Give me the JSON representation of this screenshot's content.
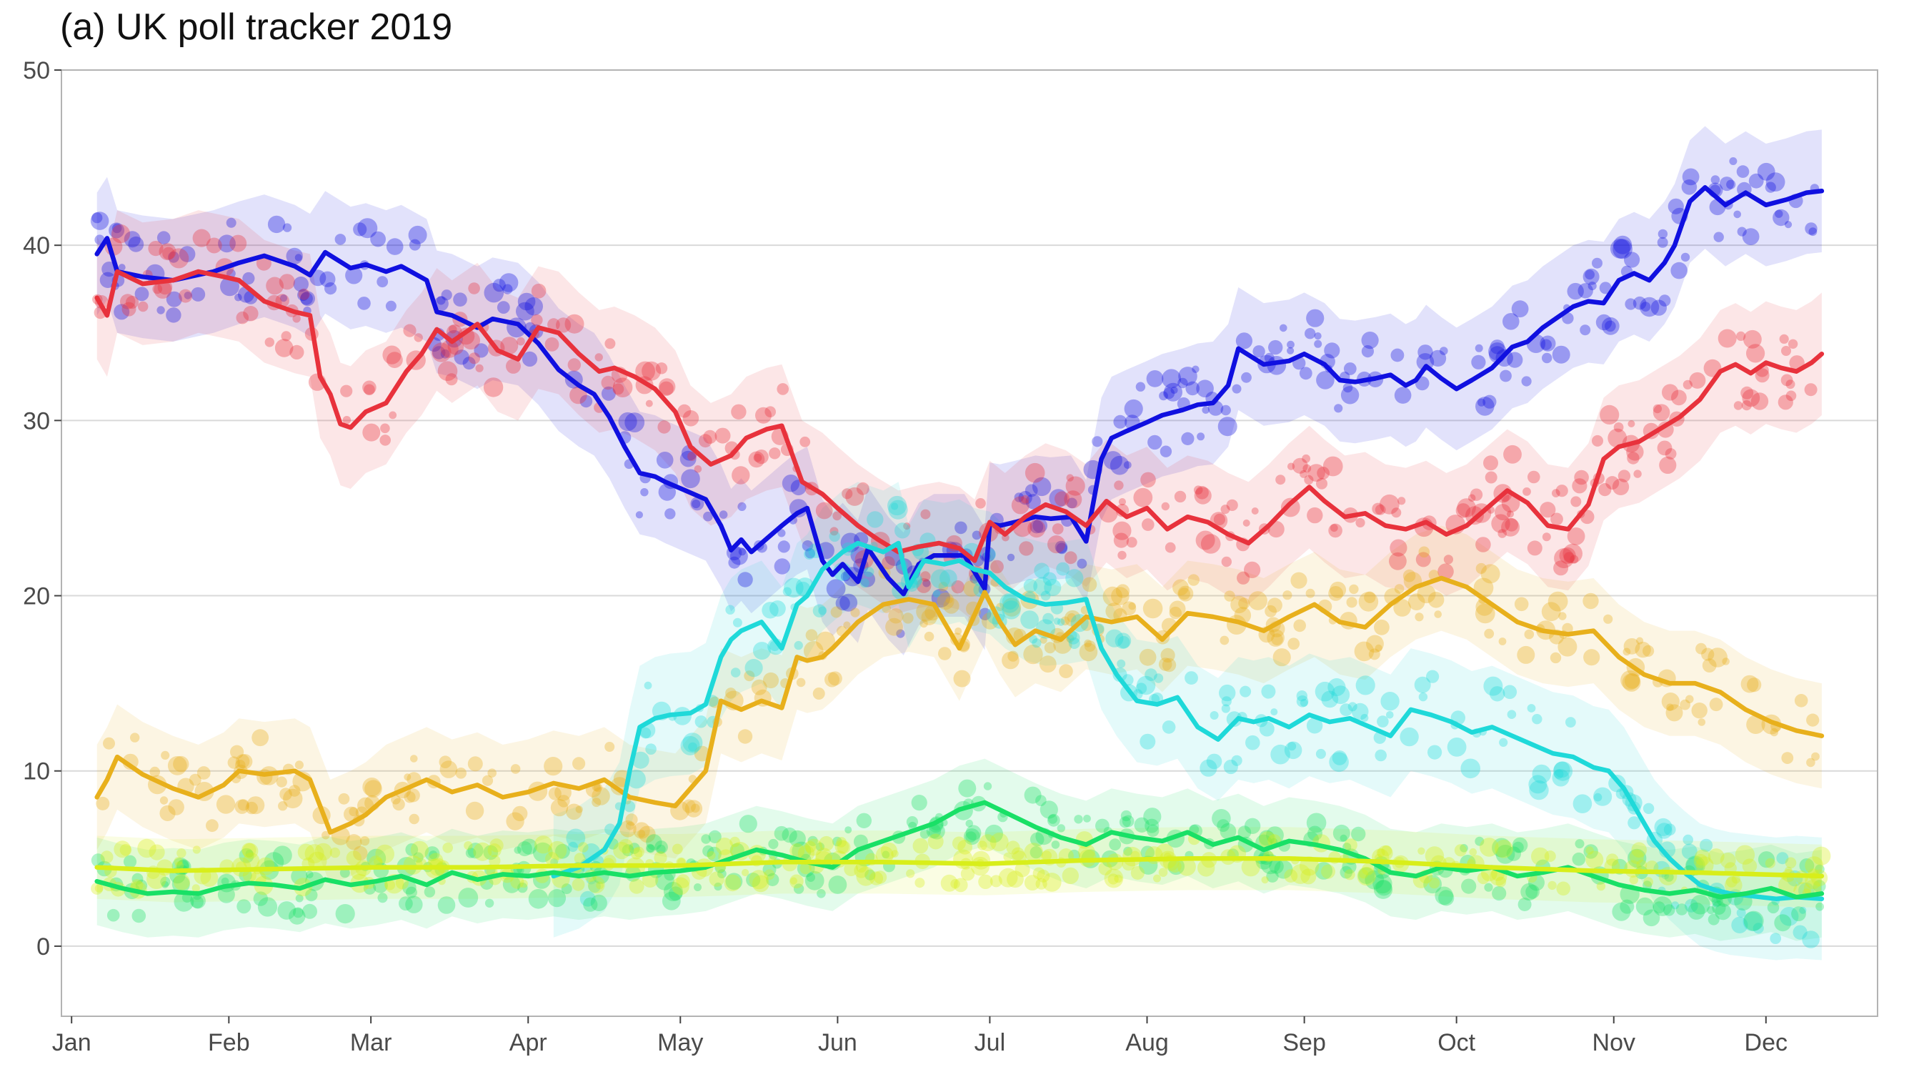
{
  "chart_data": {
    "type": "line",
    "title": "(a) UK poll tracker 2019",
    "xlabel": "",
    "ylabel": "",
    "ylim": [
      -4,
      50
    ],
    "xlim": [
      -2,
      356
    ],
    "grid": "horizontal",
    "legend": "none",
    "x_tick_labels": [
      "Jan",
      "Feb",
      "Mar",
      "Apr",
      "May",
      "Jun",
      "Jul",
      "Aug",
      "Sep",
      "Oct",
      "Nov",
      "Dec"
    ],
    "x_tick_days": [
      0,
      31,
      59,
      90,
      120,
      151,
      181,
      212,
      243,
      273,
      304,
      334
    ],
    "y_ticks": [
      0,
      10,
      20,
      30,
      40,
      50
    ],
    "series": [
      {
        "color": "#1010e0",
        "band": 3.5,
        "x": [
          5,
          7,
          9,
          14,
          20,
          28,
          33,
          38,
          44,
          47,
          50,
          55,
          58,
          62,
          65,
          70,
          72,
          75,
          80,
          83,
          88,
          92,
          96,
          100,
          103,
          106,
          109,
          112,
          115,
          117,
          121,
          125,
          128,
          130,
          132,
          134,
          136,
          140,
          143,
          145,
          148,
          150,
          152,
          155,
          157,
          161,
          164,
          167,
          170,
          173,
          176,
          180,
          181,
          183,
          186,
          190,
          193,
          197,
          200,
          203,
          205,
          208,
          212,
          215,
          219,
          222,
          225,
          228,
          230,
          235,
          240,
          243,
          247,
          250,
          253,
          257,
          260,
          263,
          265,
          267,
          270,
          273,
          276,
          280,
          284,
          287,
          290,
          293,
          296,
          299,
          302,
          305,
          308,
          311,
          314,
          316,
          319,
          322,
          326,
          330,
          334,
          338,
          342,
          345
        ],
        "y": [
          39.5,
          40.4,
          38.5,
          38.2,
          38.0,
          38.5,
          39.0,
          39.4,
          38.8,
          38.3,
          39.6,
          38.7,
          38.9,
          38.5,
          38.8,
          38.0,
          36.2,
          36.0,
          35.3,
          35.8,
          35.5,
          34.4,
          32.9,
          32.0,
          31.5,
          30.2,
          28.5,
          27.0,
          26.8,
          26.5,
          26.0,
          25.5,
          24.0,
          22.6,
          23.2,
          22.5,
          23.0,
          24.0,
          24.7,
          25.0,
          22.0,
          21.2,
          21.8,
          20.8,
          22.7,
          21.0,
          20.1,
          21.8,
          22.3,
          22.3,
          22.3,
          20.4,
          24.1,
          24.0,
          24.2,
          24.5,
          24.4,
          24.5,
          23.1,
          27.8,
          29.0,
          29.4,
          29.9,
          30.3,
          30.6,
          30.9,
          31.0,
          32.0,
          34.1,
          33.2,
          33.4,
          33.8,
          33.2,
          32.3,
          32.2,
          32.4,
          32.6,
          32.0,
          32.3,
          33.1,
          32.4,
          31.8,
          32.3,
          33.0,
          34.2,
          34.5,
          35.3,
          35.9,
          36.5,
          36.8,
          36.7,
          38.0,
          38.4,
          38.0,
          39.0,
          40.0,
          42.5,
          43.3,
          42.3,
          43.0,
          42.3,
          42.6,
          43.0,
          43.1
        ]
      },
      {
        "color": "#e8323c",
        "band": 3.5,
        "x": [
          5,
          7,
          9,
          14,
          20,
          25,
          30,
          33,
          38,
          44,
          47,
          49,
          51,
          53,
          55,
          58,
          62,
          66,
          69,
          72,
          75,
          80,
          84,
          88,
          92,
          96,
          100,
          104,
          107,
          111,
          115,
          119,
          122,
          126,
          130,
          133,
          137,
          140,
          144,
          148,
          151,
          155,
          159,
          163,
          167,
          171,
          175,
          178,
          181,
          184,
          188,
          192,
          196,
          200,
          204,
          208,
          212,
          216,
          220,
          224,
          228,
          232,
          236,
          240,
          244,
          247,
          251,
          255,
          259,
          263,
          267,
          271,
          275,
          279,
          283,
          287,
          291,
          295,
          299,
          302,
          305,
          309,
          313,
          317,
          321,
          325,
          328,
          331,
          334,
          337,
          340,
          343,
          345
        ],
        "y": [
          37.0,
          36.0,
          38.5,
          37.8,
          38.0,
          38.5,
          38.2,
          38.0,
          36.8,
          36.2,
          36.0,
          32.5,
          31.5,
          29.8,
          29.6,
          30.5,
          31.0,
          32.8,
          33.8,
          35.2,
          34.5,
          35.5,
          34.0,
          33.5,
          35.3,
          35.0,
          33.8,
          32.8,
          33.0,
          32.5,
          31.8,
          30.5,
          28.5,
          27.5,
          28.0,
          29.0,
          29.5,
          29.7,
          26.5,
          25.8,
          25.0,
          24.0,
          23.2,
          22.5,
          22.8,
          23.0,
          22.7,
          22.0,
          24.2,
          23.5,
          24.5,
          25.2,
          24.8,
          24.0,
          25.4,
          24.5,
          25.0,
          23.8,
          24.5,
          24.2,
          23.5,
          23.0,
          24.0,
          25.2,
          26.2,
          25.4,
          24.5,
          24.7,
          24.0,
          23.8,
          24.2,
          23.5,
          24.0,
          25.0,
          26.0,
          25.3,
          24.0,
          23.8,
          25.2,
          27.8,
          28.5,
          28.8,
          29.5,
          30.2,
          31.2,
          32.8,
          33.2,
          32.7,
          33.3,
          33.0,
          32.8,
          33.3,
          33.8
        ]
      },
      {
        "color": "#e8b01c",
        "band": 3.0,
        "x": [
          5,
          7,
          9,
          14,
          20,
          25,
          30,
          33,
          38,
          44,
          47,
          49,
          51,
          55,
          58,
          62,
          66,
          70,
          75,
          80,
          85,
          90,
          95,
          100,
          105,
          110,
          115,
          119,
          122,
          125,
          128,
          132,
          136,
          140,
          143,
          145,
          148,
          150,
          155,
          160,
          165,
          170,
          175,
          180,
          183,
          186,
          190,
          195,
          200,
          205,
          210,
          215,
          220,
          225,
          230,
          235,
          240,
          245,
          250,
          255,
          260,
          265,
          270,
          275,
          280,
          285,
          290,
          295,
          300,
          305,
          310,
          315,
          320,
          325,
          330,
          335,
          340,
          345
        ],
        "y": [
          8.5,
          9.5,
          10.8,
          9.8,
          9.0,
          8.5,
          9.2,
          10.0,
          9.8,
          10.0,
          9.5,
          8.0,
          6.5,
          7.0,
          7.5,
          8.5,
          9.0,
          9.5,
          8.8,
          9.2,
          8.5,
          8.8,
          9.3,
          9.0,
          9.5,
          8.5,
          8.2,
          8.0,
          9.0,
          10.0,
          14.0,
          13.5,
          14.0,
          13.6,
          16.5,
          16.3,
          16.5,
          17.0,
          18.5,
          19.5,
          19.8,
          19.5,
          17.0,
          20.2,
          18.5,
          17.2,
          18.0,
          17.5,
          18.8,
          18.5,
          18.8,
          17.5,
          19.0,
          18.8,
          18.5,
          18.0,
          18.8,
          19.5,
          18.5,
          18.2,
          19.5,
          20.5,
          21.0,
          20.5,
          19.5,
          18.5,
          18.0,
          17.8,
          18.0,
          16.5,
          15.5,
          15.0,
          15.0,
          14.5,
          13.5,
          12.8,
          12.3,
          12.0
        ]
      },
      {
        "color": "#1fd9d9",
        "band": 3.5,
        "x": [
          95,
          100,
          105,
          108,
          110,
          112,
          115,
          118,
          122,
          125,
          128,
          130,
          132,
          136,
          140,
          143,
          145,
          148,
          150,
          152,
          155,
          157,
          160,
          163,
          165,
          168,
          172,
          175,
          178,
          181,
          184,
          188,
          192,
          196,
          200,
          203,
          206,
          210,
          214,
          218,
          222,
          226,
          230,
          233,
          236,
          240,
          244,
          248,
          252,
          256,
          260,
          264,
          268,
          272,
          276,
          280,
          284,
          288,
          292,
          296,
          300,
          303,
          306,
          309,
          312,
          315,
          318,
          321,
          324,
          327,
          330,
          333,
          336,
          340,
          345
        ],
        "y": [
          4.0,
          4.5,
          5.5,
          7.0,
          10.0,
          12.5,
          13.0,
          13.2,
          13.3,
          13.8,
          16.5,
          17.5,
          18.0,
          18.5,
          17.0,
          19.5,
          20.0,
          21.5,
          22.0,
          22.5,
          23.0,
          22.8,
          22.5,
          23.0,
          20.5,
          22.0,
          21.8,
          22.0,
          21.5,
          21.3,
          20.5,
          19.8,
          19.5,
          19.6,
          19.8,
          17.0,
          15.5,
          14.0,
          13.8,
          14.2,
          12.5,
          11.8,
          13.0,
          12.8,
          13.0,
          12.5,
          13.2,
          12.8,
          13.0,
          12.5,
          12.0,
          13.5,
          13.2,
          12.8,
          12.2,
          12.5,
          12.0,
          11.5,
          11.0,
          10.8,
          10.2,
          10.0,
          9.0,
          7.5,
          6.0,
          5.0,
          4.2,
          3.5,
          3.2,
          3.0,
          2.9,
          2.8,
          2.7,
          2.8,
          2.7
        ]
      },
      {
        "color": "#19e066",
        "band": 2.5,
        "x": [
          5,
          10,
          15,
          20,
          25,
          30,
          35,
          40,
          45,
          50,
          55,
          60,
          65,
          70,
          75,
          80,
          85,
          90,
          95,
          100,
          105,
          110,
          115,
          120,
          125,
          130,
          135,
          140,
          145,
          150,
          155,
          160,
          165,
          170,
          175,
          180,
          185,
          190,
          195,
          200,
          205,
          210,
          215,
          220,
          225,
          230,
          235,
          240,
          245,
          250,
          255,
          260,
          265,
          270,
          275,
          280,
          285,
          290,
          295,
          300,
          305,
          310,
          315,
          320,
          325,
          330,
          335,
          340,
          345
        ],
        "y": [
          3.7,
          3.3,
          3.0,
          3.1,
          3.0,
          3.4,
          3.6,
          3.5,
          3.3,
          3.8,
          3.5,
          3.7,
          4.0,
          3.5,
          4.2,
          3.8,
          4.1,
          4.0,
          4.2,
          4.0,
          4.2,
          4.0,
          4.2,
          4.3,
          4.5,
          5.0,
          5.5,
          5.2,
          4.8,
          4.5,
          5.5,
          6.0,
          6.5,
          7.0,
          7.8,
          8.2,
          7.5,
          6.8,
          6.2,
          5.8,
          6.5,
          6.2,
          6.0,
          6.5,
          5.8,
          6.2,
          5.5,
          6.0,
          5.8,
          5.5,
          5.0,
          4.2,
          4.0,
          4.5,
          4.3,
          4.5,
          4.0,
          4.2,
          4.5,
          4.0,
          3.5,
          3.2,
          3.0,
          3.2,
          2.8,
          3.0,
          3.3,
          2.8,
          3.0
        ]
      },
      {
        "color": "#d8ee1a",
        "band": 1.8,
        "x": [
          5,
          20,
          40,
          60,
          80,
          100,
          120,
          140,
          160,
          180,
          200,
          220,
          240,
          260,
          280,
          300,
          320,
          345
        ],
        "y": [
          4.5,
          4.3,
          4.4,
          4.5,
          4.5,
          4.6,
          4.6,
          4.8,
          4.8,
          4.7,
          4.9,
          5.0,
          5.0,
          4.8,
          4.5,
          4.3,
          4.2,
          4.0
        ]
      }
    ]
  }
}
